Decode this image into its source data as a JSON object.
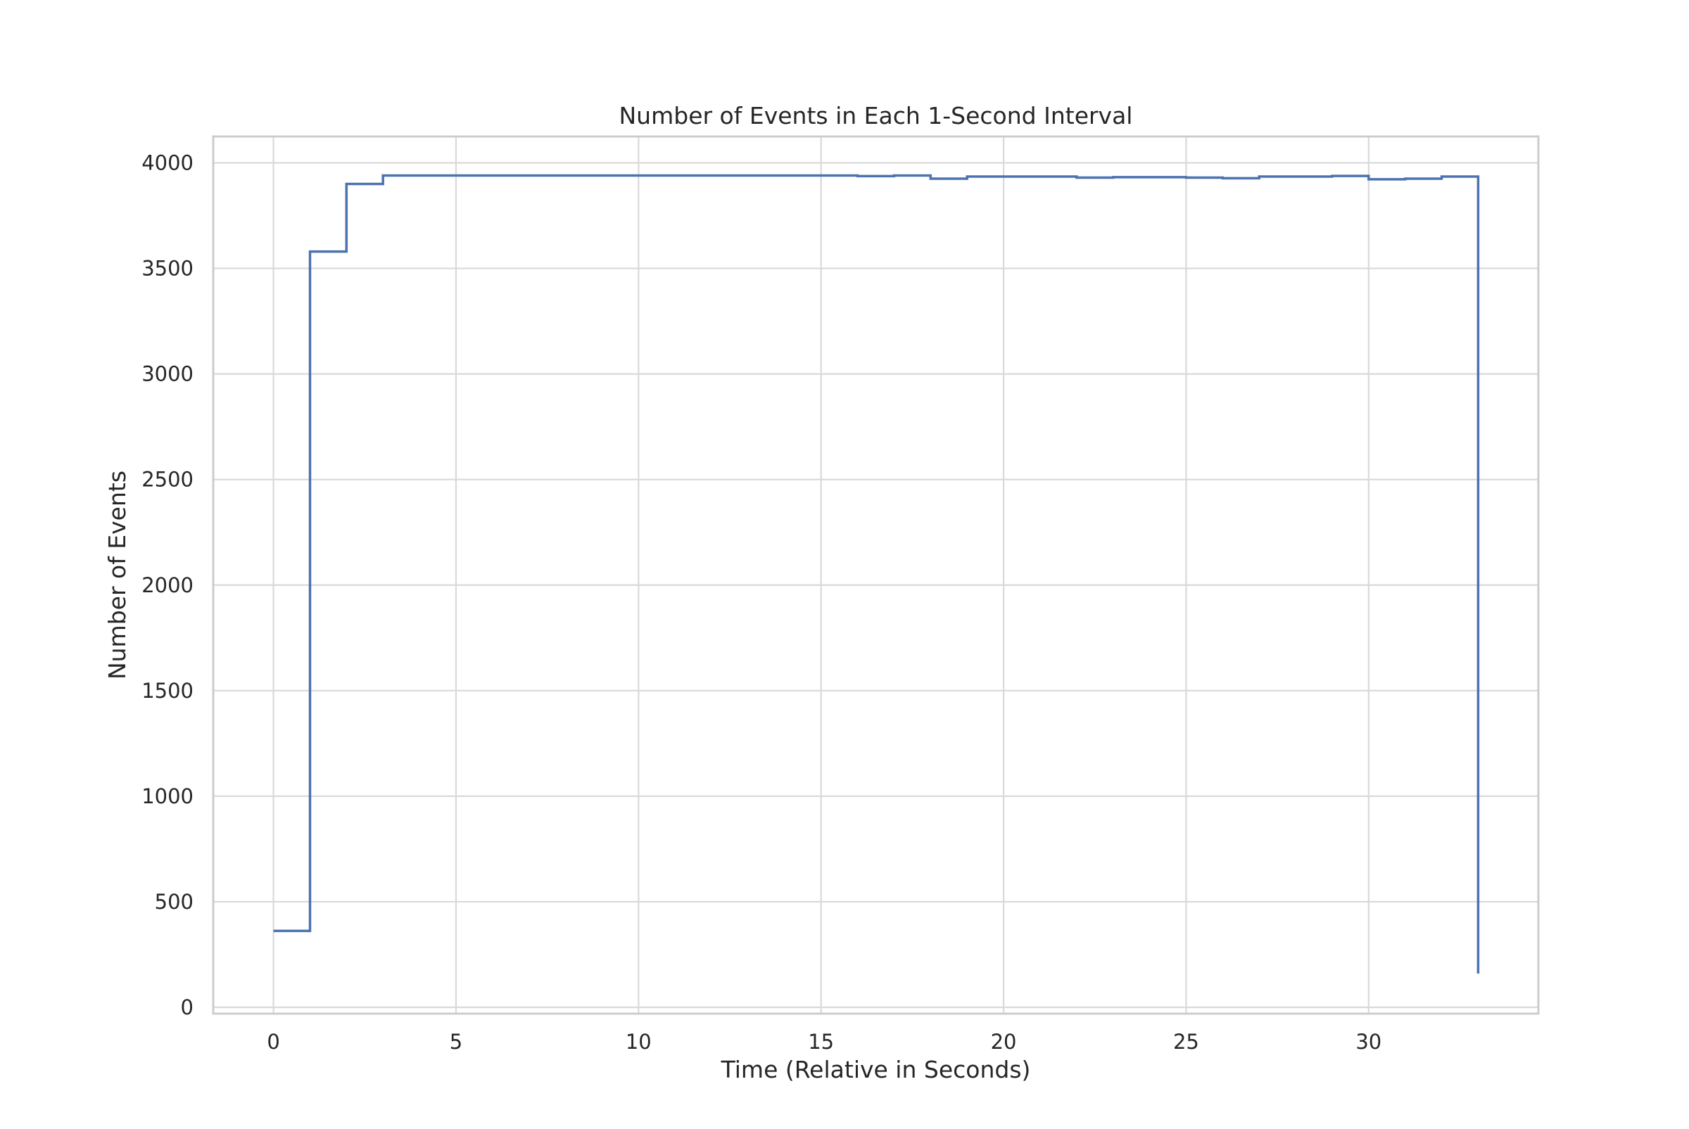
{
  "chart_data": {
    "type": "line",
    "drawstyle": "steps-post",
    "title": "Number of Events in Each 1-Second Interval",
    "xlabel": "Time (Relative in Seconds)",
    "ylabel": "Number of Events",
    "xlim": [
      -1.65,
      34.65
    ],
    "ylim": [
      -30,
      4125
    ],
    "xticks": [
      0,
      5,
      10,
      15,
      20,
      25,
      30
    ],
    "yticks": [
      0,
      500,
      1000,
      1500,
      2000,
      2500,
      3000,
      3500,
      4000
    ],
    "grid": true,
    "legend": "none",
    "colors": {
      "line": "#4c72b0"
    },
    "series": [
      {
        "x": [
          0,
          1,
          2,
          3,
          4,
          5,
          6,
          7,
          8,
          9,
          10,
          11,
          12,
          13,
          14,
          15,
          16,
          17,
          18,
          19,
          20,
          21,
          22,
          23,
          24,
          25,
          26,
          27,
          28,
          29,
          30,
          31,
          32,
          33
        ],
        "values": [
          362,
          3580,
          3900,
          3940,
          3940,
          3940,
          3940,
          3940,
          3940,
          3940,
          3940,
          3940,
          3940,
          3940,
          3940,
          3940,
          3937,
          3940,
          3925,
          3935,
          3935,
          3935,
          3930,
          3932,
          3932,
          3930,
          3927,
          3935,
          3935,
          3938,
          3922,
          3925,
          3935,
          160
        ]
      }
    ]
  }
}
